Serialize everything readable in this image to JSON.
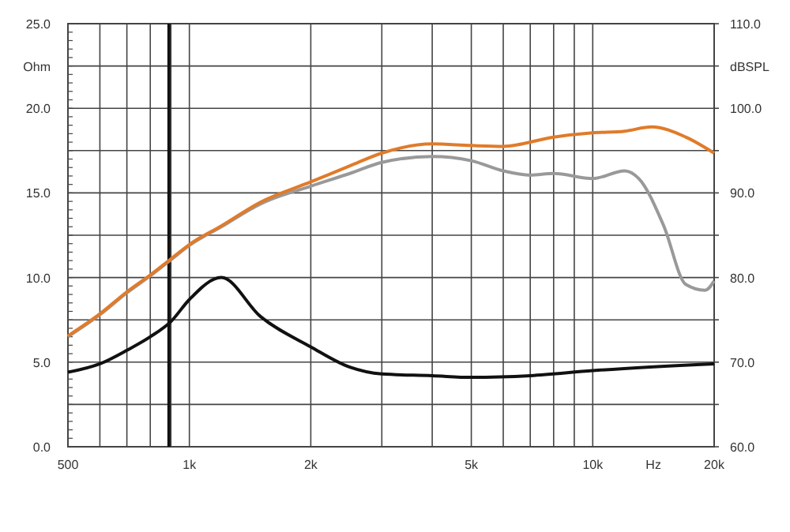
{
  "chart_data": {
    "type": "line",
    "xlabel": "Hz",
    "ylabel": "Ohm",
    "y2label": "dBSPL",
    "log": "x",
    "grid": true,
    "marker": "none",
    "line_style": "solid",
    "xlim": [
      500,
      20000
    ],
    "xticks": [
      {
        "value": 500,
        "label": "500"
      },
      {
        "value": 600,
        "label": null
      },
      {
        "value": 700,
        "label": null
      },
      {
        "value": 800,
        "label": null
      },
      {
        "value": 900,
        "label": null
      },
      {
        "value": 1000,
        "label": "1k"
      },
      {
        "value": 2000,
        "label": "2k"
      },
      {
        "value": 3000,
        "label": null
      },
      {
        "value": 4000,
        "label": null
      },
      {
        "value": 5000,
        "label": "5k"
      },
      {
        "value": 6000,
        "label": null
      },
      {
        "value": 7000,
        "label": null
      },
      {
        "value": 8000,
        "label": null
      },
      {
        "value": 9000,
        "label": null
      },
      {
        "value": 10000,
        "label": "10k"
      },
      {
        "value": 20000,
        "label": "20k"
      }
    ],
    "ylim": [
      0,
      25
    ],
    "yticks": [
      {
        "value": 0,
        "label": "0.0"
      },
      {
        "value": 2.5,
        "label": null
      },
      {
        "value": 5,
        "label": "5.0"
      },
      {
        "value": 7.5,
        "label": null
      },
      {
        "value": 10,
        "label": "10.0"
      },
      {
        "value": 12.5,
        "label": null
      },
      {
        "value": 15,
        "label": "15.0"
      },
      {
        "value": 17.5,
        "label": null
      },
      {
        "value": 20,
        "label": "20.0"
      },
      {
        "value": 22.5,
        "label": null
      },
      {
        "value": 25,
        "label": "25.0"
      }
    ],
    "y2lim": [
      60,
      110
    ],
    "y2ticks": [
      {
        "value": 60,
        "label": "60.0"
      },
      {
        "value": 65,
        "label": null
      },
      {
        "value": 70,
        "label": "70.0"
      },
      {
        "value": 75,
        "label": null
      },
      {
        "value": 80,
        "label": "80.0"
      },
      {
        "value": 85,
        "label": null
      },
      {
        "value": 90,
        "label": "90.0"
      },
      {
        "value": 95,
        "label": null
      },
      {
        "value": 100,
        "label": "100.0"
      },
      {
        "value": 105,
        "label": null
      },
      {
        "value": 110,
        "label": "110.0"
      }
    ],
    "ref_lines": [
      {
        "axis": "x",
        "value": 890,
        "color": "#111111"
      }
    ],
    "series": [
      {
        "color": "#111111",
        "axis": "y",
        "x": [
          500,
          600,
          700,
          800,
          900,
          1000,
          1200,
          1500,
          2000,
          2500,
          3000,
          4000,
          5000,
          7000,
          10000,
          20000
        ],
        "values": [
          4.4,
          4.9,
          5.7,
          6.5,
          7.4,
          8.7,
          10.0,
          7.7,
          5.9,
          4.7,
          4.3,
          4.2,
          4.1,
          4.2,
          4.5,
          4.9
        ]
      },
      {
        "color": "#999999",
        "axis": "y2",
        "x": [
          500,
          600,
          700,
          800,
          900,
          1000,
          1200,
          1500,
          2000,
          2500,
          3000,
          4000,
          5000,
          6000,
          7000,
          8000,
          10000,
          12000,
          13000,
          15000,
          17000,
          19000,
          20000
        ],
        "values": [
          73.0,
          75.6,
          78.2,
          80.2,
          82.1,
          83.8,
          86.0,
          88.7,
          90.8,
          92.3,
          93.6,
          94.3,
          93.8,
          92.6,
          92.1,
          92.3,
          91.7,
          92.6,
          91.7,
          86.1,
          79.2,
          78.5,
          79.6
        ]
      },
      {
        "color": "#e07b2a",
        "axis": "y2",
        "x": [
          500,
          600,
          700,
          800,
          900,
          1000,
          1200,
          1500,
          2000,
          2500,
          3000,
          4000,
          5000,
          6000,
          8000,
          10000,
          12000,
          14000,
          17000,
          20000
        ],
        "values": [
          73.1,
          75.7,
          78.3,
          80.3,
          82.2,
          83.9,
          86.1,
          88.9,
          91.3,
          93.2,
          94.7,
          95.8,
          95.6,
          95.5,
          96.6,
          97.1,
          97.3,
          97.8,
          96.6,
          94.7
        ]
      }
    ]
  }
}
